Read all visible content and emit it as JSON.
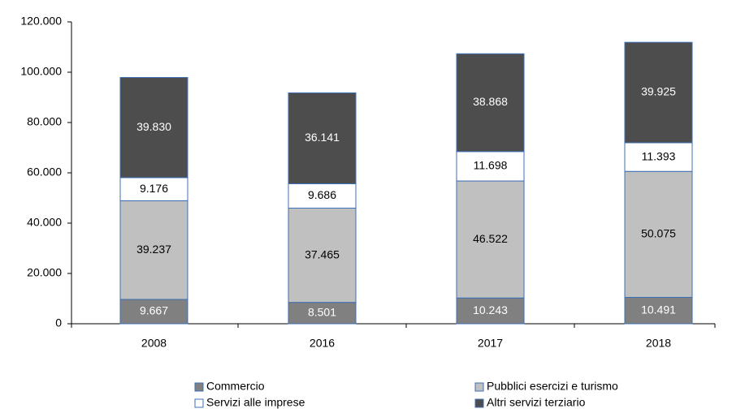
{
  "chart_data": {
    "type": "stacked_bar",
    "categories": [
      "2008",
      "2016",
      "2017",
      "2018"
    ],
    "series": [
      {
        "name": "Commercio",
        "color": "#808080",
        "values": [
          9667,
          8501,
          10243,
          10491
        ],
        "value_labels": [
          "9.667",
          "8.501",
          "10.243",
          "10.491"
        ]
      },
      {
        "name": "Pubblici esercizi e turismo",
        "color": "#c0c0c0",
        "values": [
          39237,
          37465,
          46522,
          50075
        ],
        "value_labels": [
          "39.237",
          "37.465",
          "46.522",
          "50.075"
        ]
      },
      {
        "name": "Servizi alle imprese",
        "color": "#ffffff",
        "values": [
          9176,
          9686,
          11698,
          11393
        ],
        "value_labels": [
          "9.176",
          "9.686",
          "11.698",
          "11.393"
        ]
      },
      {
        "name": "Altri servizi terziario",
        "color": "#4d4d4d",
        "values": [
          39830,
          36141,
          38868,
          39925
        ],
        "value_labels": [
          "39.830",
          "36.141",
          "38.868",
          "39.925"
        ]
      }
    ],
    "ylim": [
      0,
      120000
    ],
    "yticks": [
      0,
      {
        "value": 20000,
        "label": "20.000"
      },
      {
        "value": 40000,
        "label": "40.000"
      },
      {
        "value": 60000,
        "label": "60.000"
      },
      {
        "value": 80000,
        "label": "80.000"
      },
      {
        "value": 100000,
        "label": "100.000"
      },
      {
        "value": 120000,
        "label": "120.000"
      }
    ],
    "legend": "bottom",
    "grid": false
  }
}
